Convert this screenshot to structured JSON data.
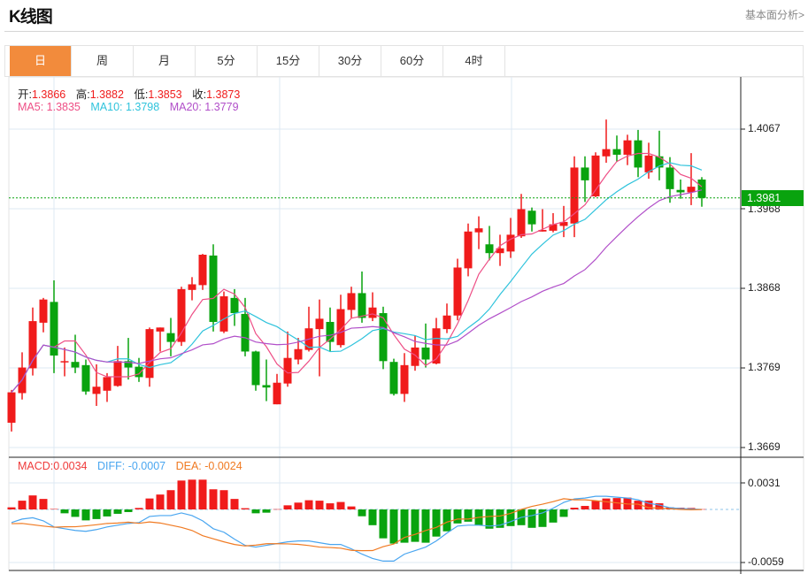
{
  "header": {
    "title": "K线图",
    "link": "基本面分析>"
  },
  "tabs": [
    {
      "label": "日",
      "active": true
    },
    {
      "label": "周"
    },
    {
      "label": "月"
    },
    {
      "label": "5分"
    },
    {
      "label": "15分"
    },
    {
      "label": "30分"
    },
    {
      "label": "60分"
    },
    {
      "label": "4时"
    }
  ],
  "legend": {
    "open_label": "开:",
    "open": "1.3866",
    "high_label": "高:",
    "high": "1.3882",
    "low_label": "低:",
    "low": "1.3853",
    "close_label": "收:",
    "close": "1.3873",
    "ma5": "MA5: 1.3835",
    "ma10": "MA10: 1.3798",
    "ma20": "MA20: 1.3779"
  },
  "macd_legend": {
    "macd": "MACD:0.0034",
    "diff": "DIFF: -0.0007",
    "dea": "DEA: -0.0024"
  },
  "current_price": "1.3981",
  "colors": {
    "up": "#f01b1b",
    "down": "#09a30e",
    "ma5": "#ee4f86",
    "ma10": "#2fc3dc",
    "ma20": "#b14fc9",
    "diff": "#4aa6f0",
    "dea": "#f07a22",
    "tab_active": "#f28b3c"
  },
  "chart_data": {
    "type": "candlestick",
    "price_axis": {
      "ticks": [
        "1.4067",
        "1.3968",
        "1.3868",
        "1.3769",
        "1.3669"
      ],
      "tick_values": [
        1.4067,
        1.3968,
        1.3868,
        1.3769,
        1.3669
      ]
    },
    "macd_axis": {
      "ticks": [
        "0.0031",
        "-0.0059"
      ],
      "tick_values": [
        0.0031,
        -0.0059
      ]
    },
    "ohlc": [
      [
        1.37,
        1.3741,
        1.3689,
        1.3738
      ],
      [
        1.3737,
        1.3788,
        1.3729,
        1.3769
      ],
      [
        1.3768,
        1.3844,
        1.3759,
        1.3827
      ],
      [
        1.3825,
        1.3856,
        1.3813,
        1.3854
      ],
      [
        1.3851,
        1.3878,
        1.3762,
        1.3784
      ],
      [
        1.3776,
        1.3794,
        1.3758,
        1.3777
      ],
      [
        1.3776,
        1.381,
        1.3762,
        1.3769
      ],
      [
        1.3772,
        1.3779,
        1.3735,
        1.3739
      ],
      [
        1.3736,
        1.3773,
        1.3721,
        1.3745
      ],
      [
        1.374,
        1.3762,
        1.3726,
        1.3757
      ],
      [
        1.3746,
        1.3796,
        1.3745,
        1.3777
      ],
      [
        1.3777,
        1.3806,
        1.3754,
        1.3769
      ],
      [
        1.377,
        1.3781,
        1.3751,
        1.3757
      ],
      [
        1.3756,
        1.3819,
        1.3745,
        1.3817
      ],
      [
        1.3814,
        1.3819,
        1.3789,
        1.3819
      ],
      [
        1.3812,
        1.3831,
        1.3783,
        1.3801
      ],
      [
        1.3801,
        1.387,
        1.3796,
        1.3867
      ],
      [
        1.3866,
        1.3882,
        1.3853,
        1.3873
      ],
      [
        1.3872,
        1.3911,
        1.3866,
        1.391
      ],
      [
        1.3909,
        1.3923,
        1.3814,
        1.3826
      ],
      [
        1.3814,
        1.3864,
        1.3812,
        1.3858
      ],
      [
        1.3856,
        1.3867,
        1.3821,
        1.3837
      ],
      [
        1.3836,
        1.3856,
        1.3783,
        1.3789
      ],
      [
        1.3789,
        1.379,
        1.374,
        1.3747
      ],
      [
        1.3747,
        1.3779,
        1.3727,
        1.3744
      ],
      [
        1.3723,
        1.3761,
        1.3723,
        1.375
      ],
      [
        1.3749,
        1.3814,
        1.3745,
        1.3781
      ],
      [
        1.3779,
        1.3806,
        1.3773,
        1.3792
      ],
      [
        1.3791,
        1.3845,
        1.3789,
        1.3818
      ],
      [
        1.3817,
        1.3854,
        1.3758,
        1.383
      ],
      [
        1.3826,
        1.3844,
        1.3789,
        1.3801
      ],
      [
        1.3797,
        1.386,
        1.3794,
        1.3842
      ],
      [
        1.3841,
        1.387,
        1.3831,
        1.3862
      ],
      [
        1.3862,
        1.3889,
        1.3825,
        1.3831
      ],
      [
        1.3831,
        1.3863,
        1.3827,
        1.3844
      ],
      [
        1.3837,
        1.3845,
        1.3767,
        1.3777
      ],
      [
        1.3776,
        1.378,
        1.3734,
        1.3736
      ],
      [
        1.3736,
        1.3787,
        1.3726,
        1.3772
      ],
      [
        1.3771,
        1.3809,
        1.3765,
        1.3794
      ],
      [
        1.3794,
        1.3824,
        1.3769,
        1.3779
      ],
      [
        1.3774,
        1.3831,
        1.3773,
        1.3818
      ],
      [
        1.3817,
        1.3849,
        1.3812,
        1.3834
      ],
      [
        1.3834,
        1.3905,
        1.3828,
        1.3894
      ],
      [
        1.3893,
        1.3949,
        1.3883,
        1.3939
      ],
      [
        1.3938,
        1.3958,
        1.3917,
        1.3943
      ],
      [
        1.3923,
        1.3946,
        1.3903,
        1.3912
      ],
      [
        1.3912,
        1.3935,
        1.3896,
        1.3918
      ],
      [
        1.3914,
        1.3956,
        1.3906,
        1.3935
      ],
      [
        1.3933,
        1.3986,
        1.3931,
        1.3967
      ],
      [
        1.3965,
        1.3969,
        1.3939,
        1.3948
      ],
      [
        1.3939,
        1.3967,
        1.3939,
        1.3941
      ],
      [
        1.394,
        1.3962,
        1.3938,
        1.3948
      ],
      [
        1.3946,
        1.3971,
        1.3932,
        1.3951
      ],
      [
        1.3949,
        1.4033,
        1.3932,
        1.4019
      ],
      [
        1.4019,
        1.4033,
        1.3976,
        1.4003
      ],
      [
        1.3983,
        1.4038,
        1.3982,
        1.4034
      ],
      [
        1.4033,
        1.4079,
        1.4025,
        1.4042
      ],
      [
        1.4042,
        1.4059,
        1.4026,
        1.4035
      ],
      [
        1.4035,
        1.406,
        1.4022,
        1.4053
      ],
      [
        1.4053,
        1.4066,
        1.4007,
        1.4019
      ],
      [
        1.4013,
        1.405,
        1.4005,
        1.4034
      ],
      [
        1.4033,
        1.4065,
        1.4003,
        1.4019
      ],
      [
        1.4019,
        1.4032,
        1.3975,
        1.3992
      ],
      [
        1.3991,
        1.4004,
        1.398,
        1.3988
      ],
      [
        1.3988,
        1.4037,
        1.3972,
        1.3995
      ],
      [
        1.4004,
        1.4007,
        1.397,
        1.3981
      ]
    ],
    "macd": [
      0.00024,
      0.001,
      0.0016,
      0.0012,
      5e-05,
      -0.00044,
      -0.00085,
      -0.00125,
      -0.0011,
      -0.0008,
      -0.0005,
      -0.0003,
      0.00017,
      0.00125,
      0.0017,
      0.0022,
      0.0033,
      0.0034,
      0.0034,
      0.0023,
      0.0022,
      0.0012,
      0.00014,
      -0.00044,
      -0.00037,
      3e-05,
      0.00047,
      0.00078,
      0.00105,
      0.001,
      0.0007,
      0.00085,
      0.00034,
      -0.00078,
      -0.0018,
      -0.0033,
      -0.0039,
      -0.0038,
      -0.0037,
      -0.0038,
      -0.0031,
      -0.0025,
      -0.0016,
      -0.0014,
      -0.0018,
      -0.0022,
      -0.0021,
      -0.0019,
      -0.0018,
      -0.0021,
      -0.002,
      -0.0015,
      -0.00085,
      0.0002,
      0.0004,
      0.001,
      0.00125,
      0.0013,
      0.00135,
      0.001,
      0.001,
      0.0007,
      0.00024,
      0.0002,
      0.00017,
      3e-05
    ],
    "diff": [
      -0.0015,
      -0.0011,
      -0.00095,
      -0.0013,
      -0.002,
      -0.0022,
      -0.0024,
      -0.0025,
      -0.0023,
      -0.002,
      -0.0018,
      -0.0016,
      -0.0015,
      -0.0008,
      -0.0007,
      -0.0007,
      -0.0004,
      -0.0007,
      -0.0013,
      -0.0022,
      -0.0026,
      -0.0034,
      -0.0041,
      -0.0043,
      -0.0041,
      -0.0039,
      -0.0037,
      -0.0036,
      -0.0036,
      -0.0038,
      -0.004,
      -0.004,
      -0.0045,
      -0.0051,
      -0.0056,
      -0.0059,
      -0.0059,
      -0.0051,
      -0.0047,
      -0.0043,
      -0.0036,
      -0.0027,
      -0.0019,
      -0.0018,
      -0.0018,
      -0.0019,
      -0.0018,
      -0.0014,
      -0.0009,
      -0.0007,
      -0.0004,
      0.00014,
      0.0008,
      0.0012,
      0.0013,
      0.0015,
      0.0015,
      0.0014,
      0.0013,
      0.0011,
      0.0007,
      0.0005,
      0.0002,
      0.0001,
      5e-05,
      0.0
    ]
  }
}
